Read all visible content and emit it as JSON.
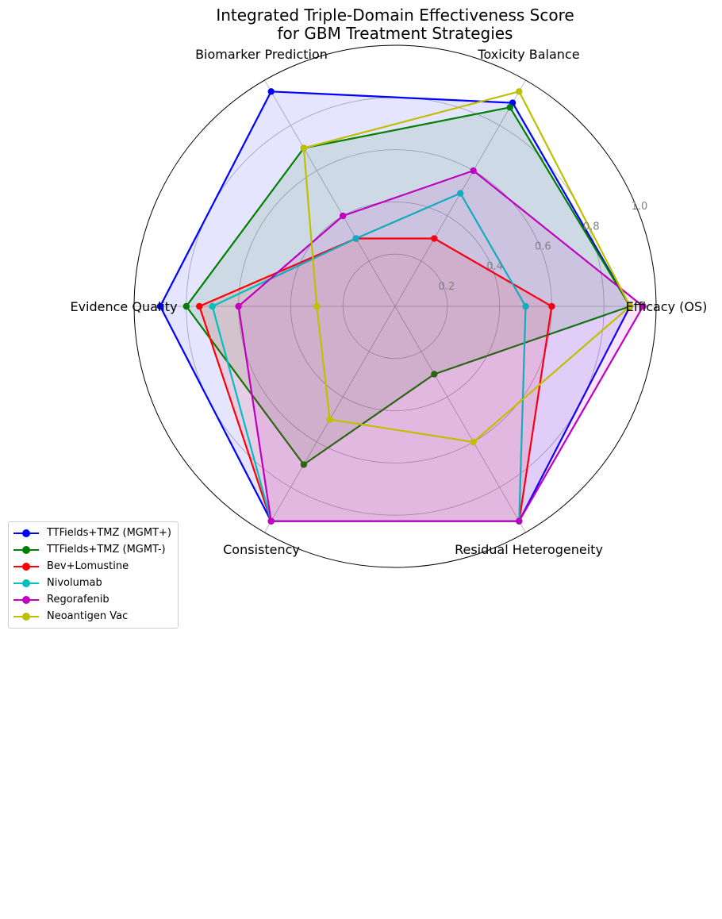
{
  "chart_data": {
    "type": "radar",
    "title": [
      "Integrated Triple-Domain Effectiveness Score",
      "for GBM Treatment Strategies"
    ],
    "categories": [
      "Efficacy (OS)",
      "Toxicity Balance",
      "Biomarker Prediction",
      "Evidence Quality",
      "Consistency",
      "Residual Heterogeneity"
    ],
    "rlim": [
      0,
      1.0
    ],
    "rticks": [
      "0.2",
      "0.4",
      "0.6",
      "0.8",
      "1.0"
    ],
    "rtick_values": [
      0.2,
      0.4,
      0.6,
      0.8,
      1.0
    ],
    "legend_placement": "lower-left",
    "series": [
      {
        "name": "TTFields+TMZ (MGMT+)",
        "color": "#0000ff",
        "fill": true,
        "values": [
          0.9,
          0.9,
          0.95,
          0.9,
          0.95,
          0.95
        ]
      },
      {
        "name": "TTFields+TMZ (MGMT-)",
        "color": "#007f00",
        "fill": true,
        "values": [
          0.9,
          0.88,
          0.7,
          0.8,
          0.7,
          0.3
        ]
      },
      {
        "name": "Bev+Lomustine",
        "color": "#ff0000",
        "fill": true,
        "values": [
          0.6,
          0.3,
          0.3,
          0.75,
          0.95,
          0.95
        ]
      },
      {
        "name": "Nivolumab",
        "color": "#00bfbf",
        "fill": false,
        "values": [
          0.5,
          0.5,
          0.3,
          0.7,
          0.95,
          0.95
        ]
      },
      {
        "name": "Regorafenib",
        "color": "#bf00bf",
        "fill": true,
        "values": [
          0.95,
          0.6,
          0.4,
          0.6,
          0.95,
          0.95
        ]
      },
      {
        "name": "Neoantigen Vac",
        "color": "#bfbf00",
        "fill": false,
        "values": [
          0.9,
          0.95,
          0.7,
          0.3,
          0.5,
          0.6
        ]
      }
    ]
  }
}
